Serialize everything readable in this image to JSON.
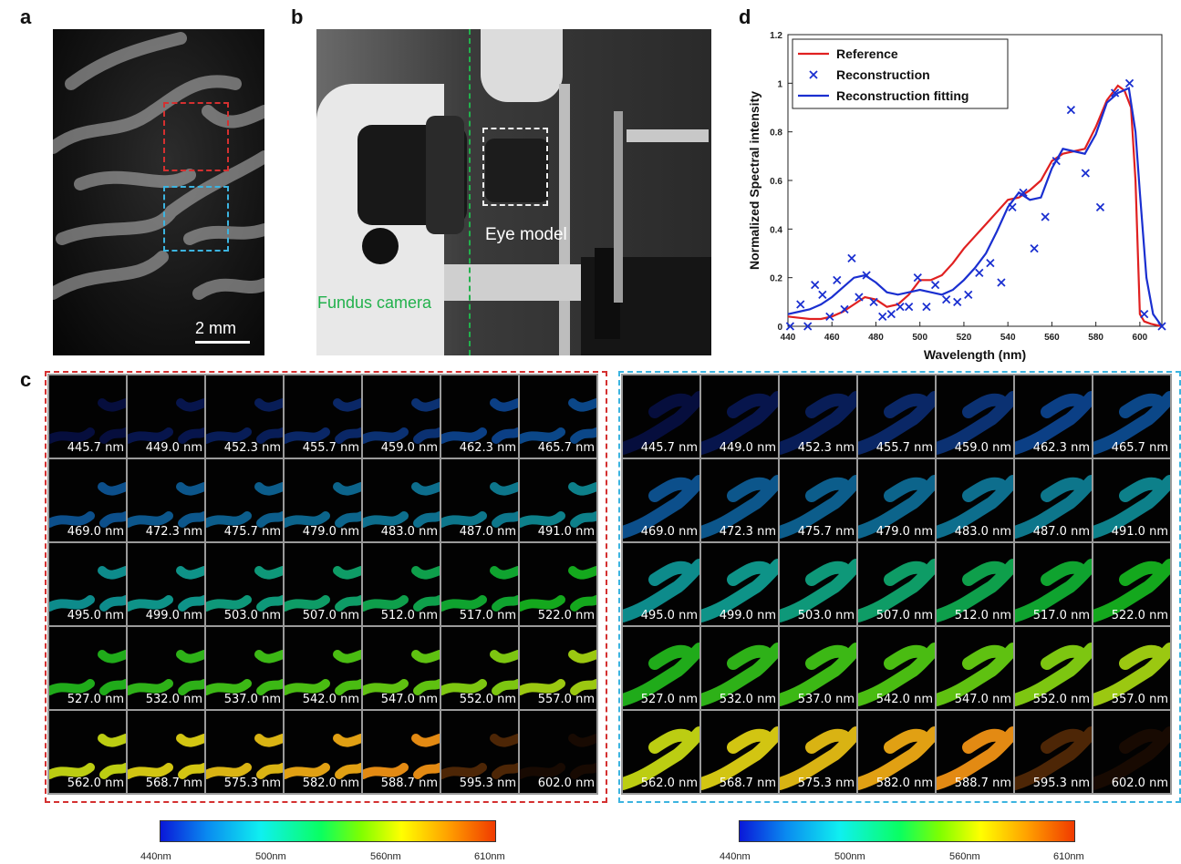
{
  "panels": {
    "a": {
      "label": "a",
      "scalebar": "2 mm"
    },
    "b": {
      "label": "b",
      "eye_model": "Eye model",
      "fundus_camera": "Fundus camera"
    },
    "c": {
      "label": "c"
    },
    "d": {
      "label": "d"
    }
  },
  "colors": {
    "red_box": "#d43030",
    "blue_box": "#3cb4e0",
    "green_line": "#22b14c"
  },
  "wavelength_labels": [
    "445.7 nm",
    "449.0 nm",
    "452.3 nm",
    "455.7 nm",
    "459.0 nm",
    "462.3 nm",
    "465.7 nm",
    "469.0 nm",
    "472.3 nm",
    "475.7 nm",
    "479.0 nm",
    "483.0 nm",
    "487.0 nm",
    "491.0 nm",
    "495.0 nm",
    "499.0 nm",
    "503.0 nm",
    "507.0 nm",
    "512.0 nm",
    "517.0 nm",
    "522.0 nm",
    "527.0 nm",
    "532.0 nm",
    "537.0 nm",
    "542.0 nm",
    "547.0 nm",
    "552.0 nm",
    "557.0 nm",
    "562.0 nm",
    "568.7 nm",
    "575.3 nm",
    "582.0 nm",
    "588.7 nm",
    "595.3 nm",
    "602.0 nm"
  ],
  "colorbar": {
    "labels": [
      "440nm",
      "500nm",
      "560nm",
      "610nm"
    ]
  },
  "chart_data": {
    "type": "line",
    "xlabel": "Wavelength (nm)",
    "ylabel": "Normalized Spectral intensity",
    "xlim": [
      440,
      610
    ],
    "ylim": [
      0,
      1.2
    ],
    "xticks": [
      440,
      460,
      480,
      500,
      520,
      540,
      560,
      580,
      600
    ],
    "yticks": [
      0,
      0.2,
      0.4,
      0.6,
      0.8,
      1,
      1.2
    ],
    "legend_position": "top-left",
    "series": [
      {
        "name": "Reference",
        "kind": "line",
        "color": "#e02020",
        "x": [
          440,
          445,
          450,
          455,
          460,
          465,
          470,
          475,
          480,
          485,
          490,
          495,
          500,
          505,
          510,
          515,
          520,
          525,
          530,
          535,
          540,
          545,
          550,
          555,
          560,
          565,
          570,
          575,
          580,
          585,
          590,
          593,
          596,
          598,
          600,
          602,
          605,
          610
        ],
        "y": [
          0.04,
          0.035,
          0.03,
          0.03,
          0.04,
          0.06,
          0.09,
          0.12,
          0.11,
          0.08,
          0.09,
          0.13,
          0.19,
          0.19,
          0.21,
          0.26,
          0.32,
          0.37,
          0.42,
          0.47,
          0.52,
          0.53,
          0.56,
          0.6,
          0.68,
          0.71,
          0.72,
          0.73,
          0.82,
          0.93,
          0.99,
          0.97,
          0.9,
          0.6,
          0.05,
          0.02,
          0.01,
          0.0
        ]
      },
      {
        "name": "Reconstruction",
        "kind": "marker",
        "color": "#1a2fd0",
        "x": [
          441,
          445.7,
          449,
          452.3,
          455.7,
          459,
          462.3,
          465.7,
          469,
          472.3,
          475.7,
          479,
          483,
          487,
          491,
          495,
          499,
          503,
          507,
          512,
          517,
          522,
          527,
          532,
          537,
          542,
          547,
          552,
          557,
          562,
          568.7,
          575.3,
          582,
          588.7,
          595.3,
          602,
          610
        ],
        "y": [
          0.0,
          0.09,
          0.0,
          0.17,
          0.13,
          0.04,
          0.19,
          0.07,
          0.28,
          0.12,
          0.21,
          0.1,
          0.04,
          0.05,
          0.08,
          0.08,
          0.2,
          0.08,
          0.17,
          0.11,
          0.1,
          0.13,
          0.22,
          0.26,
          0.18,
          0.49,
          0.55,
          0.32,
          0.45,
          0.68,
          0.89,
          0.63,
          0.49,
          0.96,
          1.0,
          0.05,
          0.0
        ]
      },
      {
        "name": "Reconstruction fitting",
        "kind": "line",
        "color": "#1a2fd0",
        "x": [
          440,
          445,
          450,
          455,
          460,
          465,
          470,
          475,
          480,
          485,
          490,
          495,
          500,
          505,
          510,
          515,
          520,
          525,
          530,
          535,
          540,
          545,
          550,
          555,
          560,
          565,
          570,
          575,
          580,
          585,
          590,
          595,
          598,
          600,
          603,
          606,
          610
        ],
        "y": [
          0.05,
          0.06,
          0.07,
          0.09,
          0.12,
          0.16,
          0.2,
          0.21,
          0.18,
          0.14,
          0.13,
          0.14,
          0.15,
          0.14,
          0.13,
          0.15,
          0.19,
          0.24,
          0.3,
          0.39,
          0.49,
          0.55,
          0.52,
          0.53,
          0.65,
          0.73,
          0.72,
          0.71,
          0.79,
          0.92,
          0.96,
          0.98,
          0.8,
          0.55,
          0.2,
          0.05,
          0.0
        ]
      }
    ]
  }
}
